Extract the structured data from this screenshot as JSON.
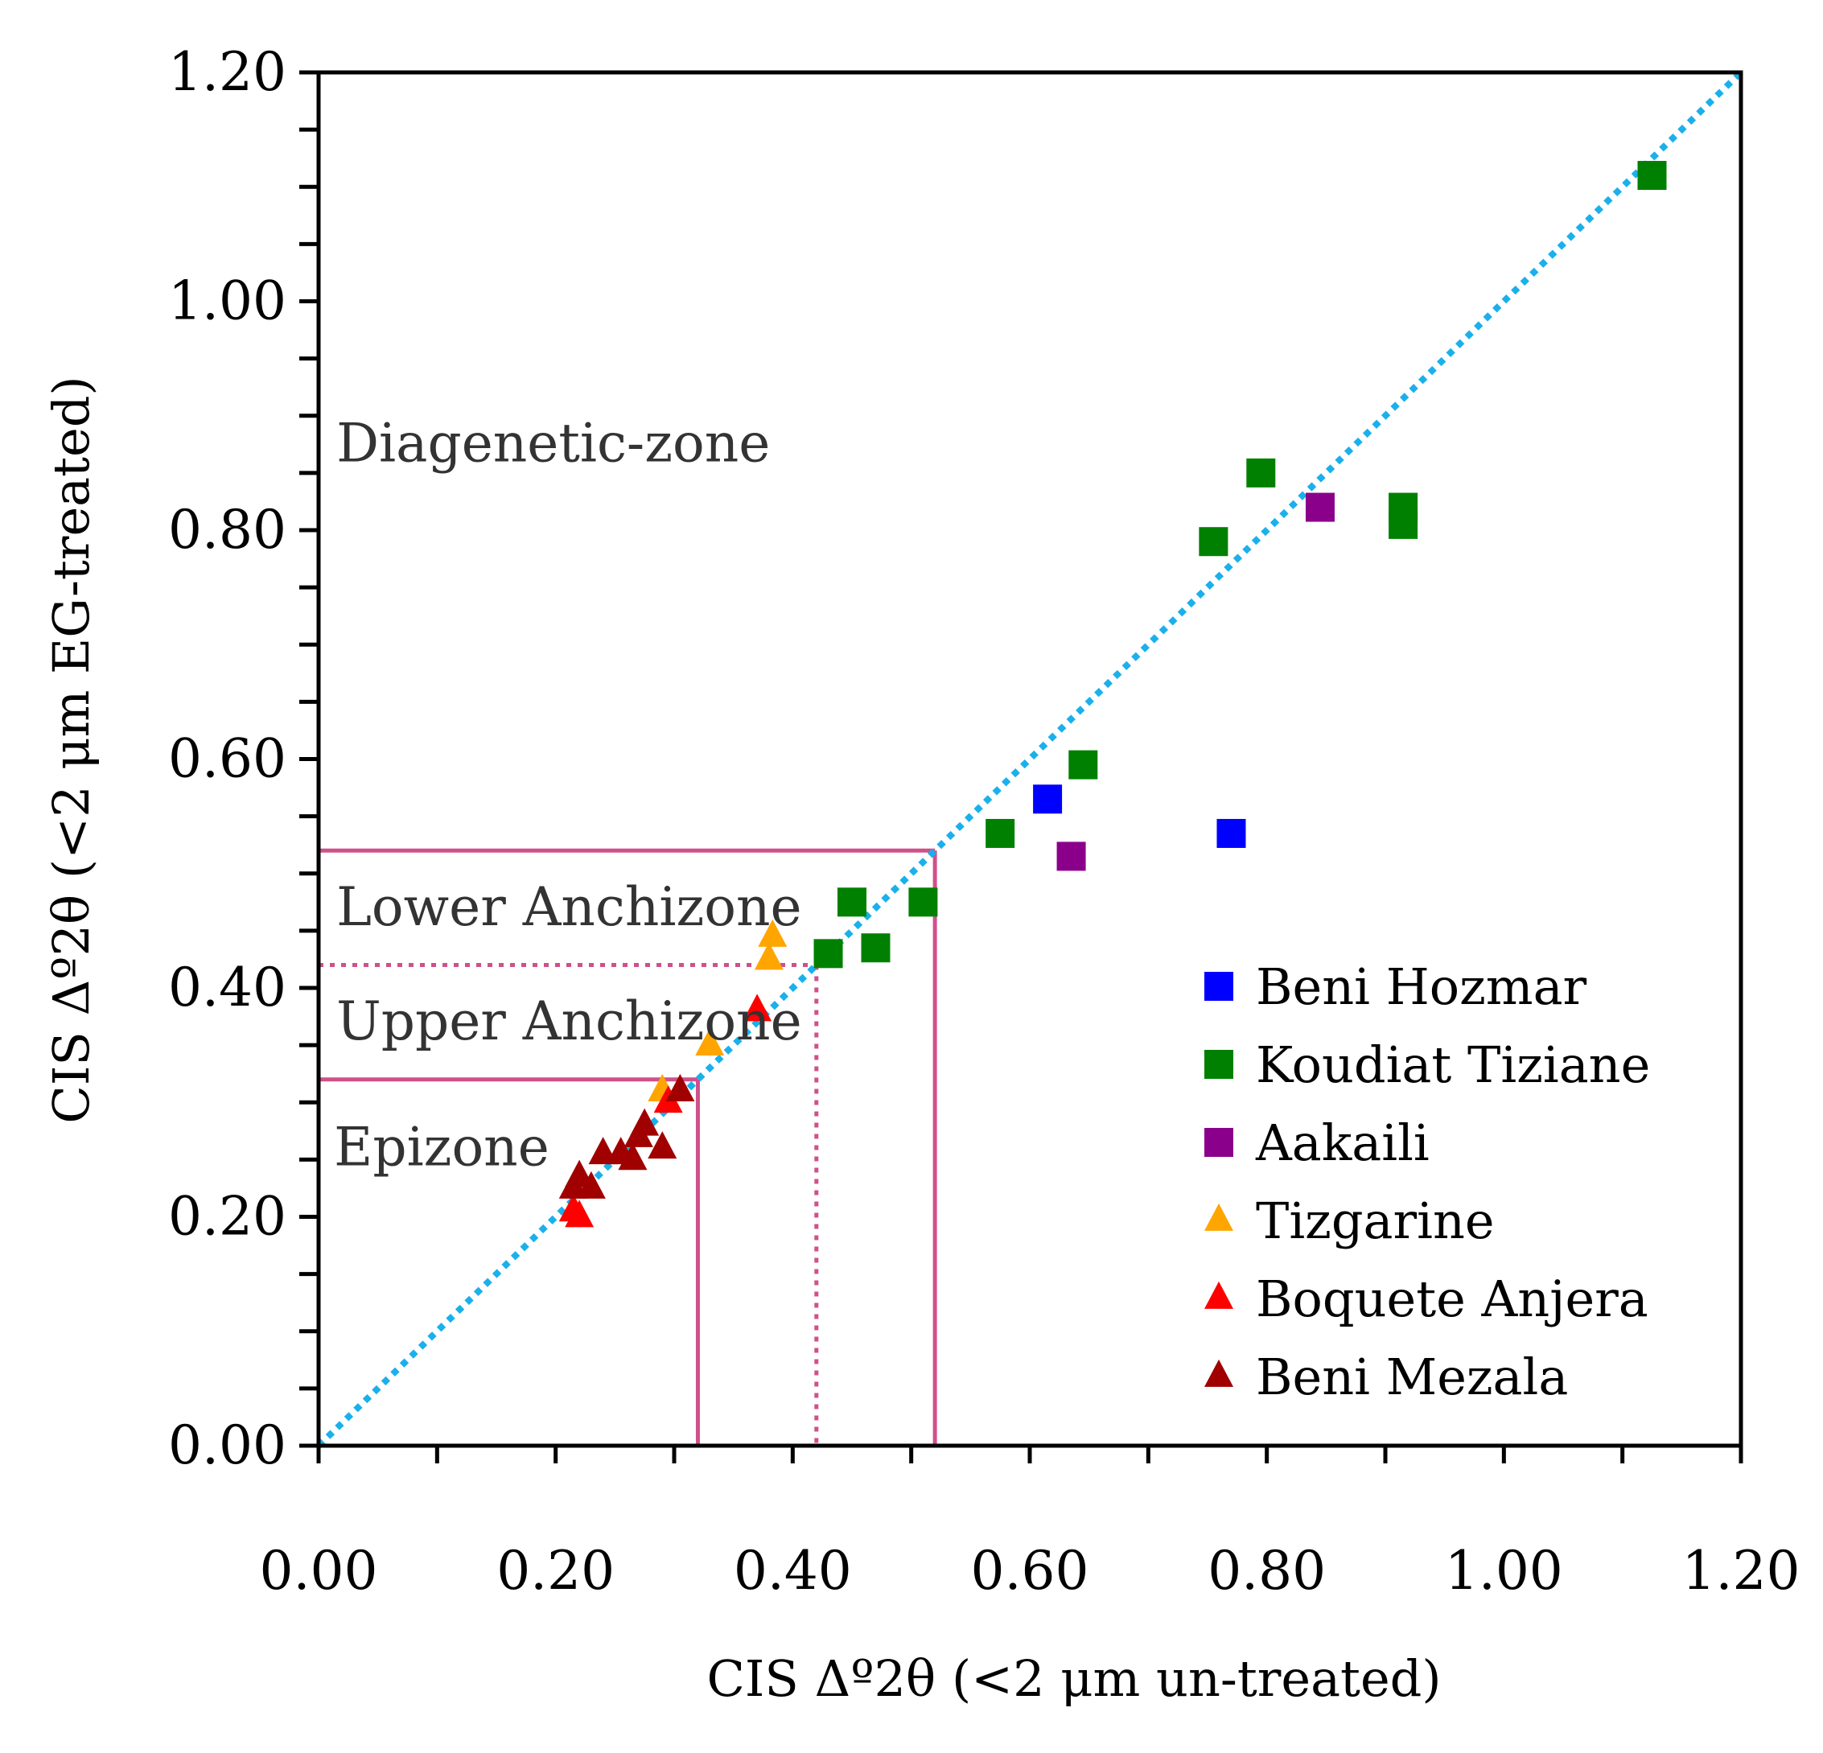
{
  "chart_data": {
    "type": "scatter",
    "title": "",
    "xlabel": "CIS Δº2θ (<2 μm un-treated)",
    "ylabel": "CIS Δº2θ (<2 μm EG-treated)",
    "xlim": [
      0,
      1.2
    ],
    "ylim": [
      0,
      1.2
    ],
    "x_ticks": [
      "0.00",
      "0.20",
      "0.40",
      "0.60",
      "0.80",
      "1.00",
      "1.20"
    ],
    "y_ticks": [
      "0.00",
      "0.20",
      "0.40",
      "0.60",
      "0.80",
      "1.00",
      "1.20"
    ],
    "tick_values": [
      0,
      0.2,
      0.4,
      0.6,
      0.8,
      1.0,
      1.2
    ],
    "grid": false,
    "legend_position": "bottom-right",
    "reference_line": {
      "name": "1:1 line",
      "from": [
        0,
        0
      ],
      "to": [
        1.2,
        1.2
      ],
      "color": "#1ab0ec",
      "style": "dotted"
    },
    "zones": [
      {
        "label": "Diagenetic-zone",
        "anchor": [
          0.015,
          0.86
        ]
      },
      {
        "label": "Lower Anchizone",
        "anchor": [
          0.015,
          0.455
        ]
      },
      {
        "label": "Upper Anchizone",
        "anchor": [
          0.015,
          0.355
        ]
      },
      {
        "label": "Epizone",
        "anchor": [
          0.013,
          0.245
        ]
      }
    ],
    "boundaries": [
      {
        "x": 0.32,
        "y": 0.32,
        "style": "solid"
      },
      {
        "x": 0.42,
        "y": 0.42,
        "style": "dotted"
      },
      {
        "x": 0.52,
        "y": 0.52,
        "style": "solid"
      }
    ],
    "boundary_color": "#d0508a",
    "series": [
      {
        "name": "Beni Hozmar",
        "marker": "square",
        "color": "#0000ff",
        "points": [
          [
            0.615,
            0.565
          ],
          [
            0.77,
            0.535
          ]
        ]
      },
      {
        "name": "Koudiat Tiziane",
        "marker": "square",
        "color": "#008000",
        "points": [
          [
            0.43,
            0.43
          ],
          [
            0.45,
            0.475
          ],
          [
            0.47,
            0.435
          ],
          [
            0.51,
            0.475
          ],
          [
            0.575,
            0.535
          ],
          [
            0.645,
            0.595
          ],
          [
            0.755,
            0.79
          ],
          [
            0.795,
            0.85
          ],
          [
            0.915,
            0.82
          ],
          [
            0.915,
            0.805
          ],
          [
            1.125,
            1.11
          ]
        ]
      },
      {
        "name": "Aakaili",
        "marker": "square",
        "color": "#8b008b",
        "points": [
          [
            0.635,
            0.515
          ],
          [
            0.845,
            0.82
          ]
        ]
      },
      {
        "name": "Tizgarine",
        "marker": "triangle",
        "color": "#ffa500",
        "points": [
          [
            0.29,
            0.31
          ],
          [
            0.33,
            0.35
          ],
          [
            0.38,
            0.425
          ],
          [
            0.383,
            0.445
          ]
        ]
      },
      {
        "name": "Boquete Anjera",
        "marker": "triangle",
        "color": "#ff0000",
        "points": [
          [
            0.215,
            0.205
          ],
          [
            0.22,
            0.2
          ],
          [
            0.295,
            0.3
          ],
          [
            0.37,
            0.38
          ]
        ]
      },
      {
        "name": "Beni Mezala",
        "marker": "triangle",
        "color": "#a00000",
        "points": [
          [
            0.215,
            0.225
          ],
          [
            0.22,
            0.235
          ],
          [
            0.23,
            0.225
          ],
          [
            0.24,
            0.255
          ],
          [
            0.255,
            0.255
          ],
          [
            0.265,
            0.25
          ],
          [
            0.27,
            0.27
          ],
          [
            0.275,
            0.28
          ],
          [
            0.29,
            0.26
          ],
          [
            0.305,
            0.31
          ]
        ]
      }
    ]
  }
}
